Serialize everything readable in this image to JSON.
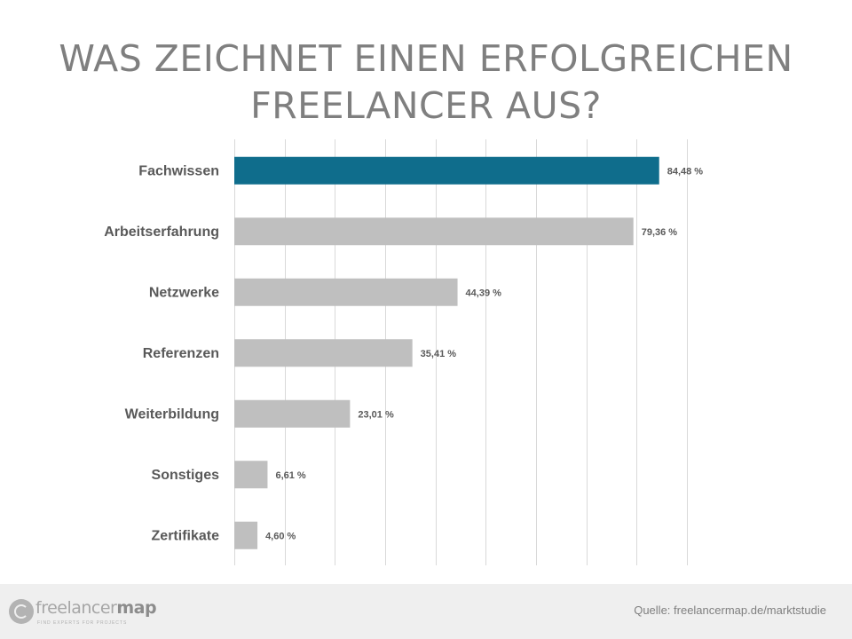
{
  "title": {
    "line1": "WAS ZEICHNET EINEN ERFOLGREICHEN",
    "line2": "FREELANCER AUS?"
  },
  "chart_data": {
    "type": "bar",
    "orientation": "horizontal",
    "categories": [
      "Fachwissen",
      "Arbeitserfahrung",
      "Netzwerke",
      "Referenzen",
      "Weiterbildung",
      "Sonstiges",
      "Zertifikate"
    ],
    "values": [
      84.48,
      79.36,
      44.39,
      35.41,
      23.01,
      6.61,
      4.6
    ],
    "data_labels": [
      "84,48 %",
      "79,36 %",
      "44,39 %",
      "35,41 %",
      "23,01 %",
      "6,61 %",
      "4,60 %"
    ],
    "xlim": [
      0,
      90
    ],
    "grid": true,
    "highlight_index": 0,
    "colors": {
      "highlight": "#0f6d8c",
      "bar": "#bfbfbf",
      "grid": "#d9d9d9",
      "label": "#595959"
    }
  },
  "footer": {
    "logo_light": "freelancer",
    "logo_bold": "map",
    "logo_tagline": "FIND EXPERTS FOR PROJECTS",
    "source": "Quelle: freelancermap.de/marktstudie"
  }
}
